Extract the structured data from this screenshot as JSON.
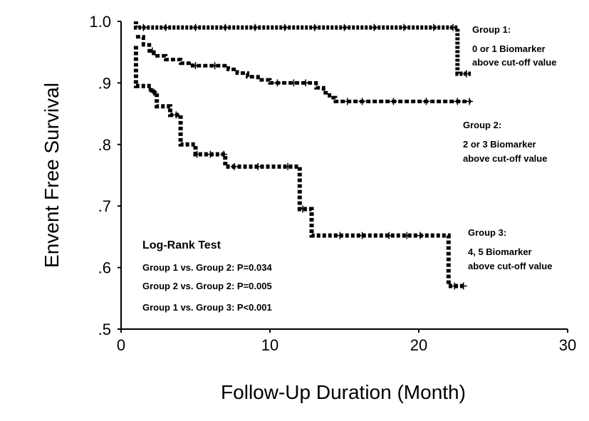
{
  "chart_data": {
    "type": "line",
    "subtype": "kaplan-meier step curves with censor marks",
    "xlabel": "Follow-Up Duration (Month)",
    "ylabel": "Envent Free Survival",
    "xlim": [
      0,
      30
    ],
    "ylim": [
      0.5,
      1.0
    ],
    "x_ticks": [
      0,
      10,
      20,
      30
    ],
    "x_tick_labels": [
      "0",
      "10",
      "20",
      "30"
    ],
    "y_ticks": [
      0.5,
      0.6,
      0.7,
      0.8,
      0.9,
      1.0
    ],
    "y_tick_labels": [
      ".5",
      ".6",
      ".7",
      ".8",
      ".9",
      "1.0"
    ],
    "grid": false,
    "legend": "none",
    "line_color": "#000000",
    "series": [
      {
        "labels": [
          "Group 1:",
          "0 or 1 Biomarker",
          "above cut-off value"
        ],
        "style": "dotted-heavy",
        "steps": [
          [
            1.0,
            1.0
          ],
          [
            1.0,
            0.99
          ],
          [
            22.6,
            0.99
          ],
          [
            22.6,
            0.915
          ],
          [
            23.5,
            0.915
          ]
        ],
        "censor_x": [
          1.5,
          3,
          5,
          7,
          9,
          11,
          13,
          15,
          17,
          19,
          21,
          22.3,
          23.2
        ]
      },
      {
        "labels": [
          "Group 2:",
          "2 or 3 Biomarker",
          "above cut-off value"
        ],
        "style": "dashed",
        "steps": [
          [
            1.0,
            0.975
          ],
          [
            1.5,
            0.962
          ],
          [
            1.9,
            0.952
          ],
          [
            2.2,
            0.944
          ],
          [
            3.0,
            0.938
          ],
          [
            4.0,
            0.932
          ],
          [
            4.8,
            0.928
          ],
          [
            6.9,
            0.928
          ],
          [
            7.2,
            0.922
          ],
          [
            7.8,
            0.916
          ],
          [
            8.5,
            0.91
          ],
          [
            9.2,
            0.905
          ],
          [
            10.0,
            0.9
          ],
          [
            12.9,
            0.9
          ],
          [
            13.1,
            0.892
          ],
          [
            13.6,
            0.884
          ],
          [
            14.0,
            0.876
          ],
          [
            14.4,
            0.87
          ],
          [
            23.5,
            0.87
          ]
        ],
        "censor_x": [
          2.1,
          5.0,
          6.3,
          10.5,
          11.6,
          12.4,
          15.2,
          16.2,
          18.3,
          20.5,
          22.6,
          23.4
        ]
      },
      {
        "labels": [
          "Group 3:",
          "4, 5 Biomarker",
          "above cut-off value"
        ],
        "style": "dashed-heavy",
        "steps": [
          [
            1.0,
            0.96
          ],
          [
            1.0,
            0.895
          ],
          [
            2.0,
            0.895
          ],
          [
            2.0,
            0.885
          ],
          [
            2.4,
            0.885
          ],
          [
            2.4,
            0.862
          ],
          [
            3.3,
            0.862
          ],
          [
            3.3,
            0.848
          ],
          [
            4.0,
            0.848
          ],
          [
            4.0,
            0.8
          ],
          [
            5.0,
            0.8
          ],
          [
            5.0,
            0.784
          ],
          [
            7.0,
            0.784
          ],
          [
            7.0,
            0.764
          ],
          [
            12.0,
            0.764
          ],
          [
            12.0,
            0.695
          ],
          [
            12.8,
            0.695
          ],
          [
            12.8,
            0.652
          ],
          [
            22.0,
            0.652
          ],
          [
            22.0,
            0.57
          ],
          [
            23.0,
            0.57
          ]
        ],
        "censor_x": [
          2.2,
          3.7,
          5.1,
          6.0,
          6.9,
          7.6,
          9.2,
          11.2,
          12.2,
          14.7,
          16.2,
          18.0,
          19.2,
          20.1,
          22.4,
          23.0
        ]
      }
    ],
    "annotations": {
      "test_title": "Log-Rank Test",
      "lines": [
        "Group 1 vs. Group 2: P=0.034",
        "Group 2 vs. Group 2: P=0.005",
        "Group 1 vs. Group 3: P<0.001"
      ]
    }
  }
}
